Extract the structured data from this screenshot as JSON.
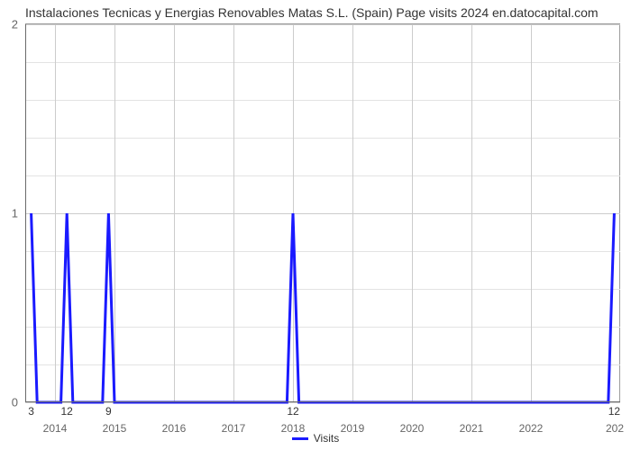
{
  "title": "Instalaciones Tecnicas y Energias Renovables Matas S.L. (Spain) Page visits 2024 en.datocapital.com",
  "chart": {
    "type": "line",
    "background_color": "#ffffff",
    "plot_border_color": "#9c9c9c",
    "axis_color": "#6a6a6a",
    "grid_major_color": "#cccccc",
    "grid_minor_color": "#e3e3e3",
    "stroke_color": "#1a1aff",
    "stroke_width": 3,
    "title_fontsize": 14,
    "title_color": "#333333",
    "tick_fontsize": 13,
    "tick_color": "#666666",
    "data_label_color": "#333333",
    "data_label_fontsize": 12,
    "ylim": [
      0,
      2
    ],
    "yticks": [
      0,
      1,
      2
    ],
    "y_minor_per_major": 5,
    "x_domain": [
      2013.5,
      2023.5
    ],
    "xticks": [
      2014,
      2015,
      2016,
      2017,
      2018,
      2019,
      2020,
      2021,
      2022
    ],
    "x_tick_label_right": "202",
    "series": {
      "name": "Visits",
      "points": [
        {
          "x": 2013.6,
          "y": 1,
          "label": "3",
          "show_label_on_axis": true
        },
        {
          "x": 2013.7,
          "y": 0
        },
        {
          "x": 2014.1,
          "y": 0
        },
        {
          "x": 2014.2,
          "y": 1,
          "label": "12",
          "show_label_on_axis": true
        },
        {
          "x": 2014.3,
          "y": 0
        },
        {
          "x": 2014.8,
          "y": 0
        },
        {
          "x": 2014.9,
          "y": 1,
          "label": "9",
          "show_label_on_axis": true
        },
        {
          "x": 2015.0,
          "y": 0
        },
        {
          "x": 2017.9,
          "y": 0
        },
        {
          "x": 2018.0,
          "y": 1,
          "label": "12",
          "show_label_on_axis": true
        },
        {
          "x": 2018.1,
          "y": 0
        },
        {
          "x": 2023.3,
          "y": 0
        },
        {
          "x": 2023.4,
          "y": 1,
          "label": "12",
          "show_label_on_axis": true
        }
      ]
    },
    "legend": {
      "label": "Visits",
      "swatch_color": "#1a1aff"
    }
  }
}
